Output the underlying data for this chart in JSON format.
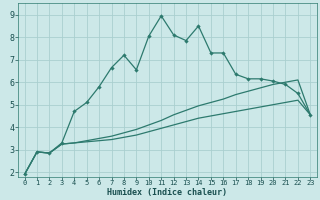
{
  "xlabel": "Humidex (Indice chaleur)",
  "xlim": [
    -0.5,
    23.5
  ],
  "ylim": [
    1.8,
    9.5
  ],
  "xticks": [
    0,
    1,
    2,
    3,
    4,
    5,
    6,
    7,
    8,
    9,
    10,
    11,
    12,
    13,
    14,
    15,
    16,
    17,
    18,
    19,
    20,
    21,
    22,
    23
  ],
  "yticks": [
    2,
    3,
    4,
    5,
    6,
    7,
    8,
    9
  ],
  "bg_color": "#cce8e8",
  "grid_color": "#aacfcf",
  "line_color": "#2d7a6e",
  "line1_x": [
    0,
    1,
    2,
    3,
    4,
    5,
    6,
    7,
    8,
    9,
    10,
    11,
    12,
    13,
    14,
    15,
    16,
    17,
    18,
    19,
    20,
    21,
    22,
    23
  ],
  "line1_y": [
    1.9,
    2.9,
    2.85,
    3.3,
    4.7,
    5.1,
    5.8,
    6.65,
    7.2,
    6.55,
    8.05,
    8.95,
    8.1,
    7.85,
    8.5,
    7.3,
    7.3,
    6.35,
    6.15,
    6.15,
    6.05,
    5.9,
    5.5,
    4.55
  ],
  "line2_x": [
    0,
    1,
    2,
    3,
    4,
    5,
    6,
    7,
    8,
    9,
    10,
    11,
    12,
    13,
    14,
    15,
    16,
    17,
    18,
    19,
    20,
    21,
    22,
    23
  ],
  "line2_y": [
    1.9,
    2.9,
    2.85,
    3.25,
    3.3,
    3.35,
    3.4,
    3.45,
    3.55,
    3.65,
    3.8,
    3.95,
    4.1,
    4.25,
    4.4,
    4.5,
    4.6,
    4.7,
    4.8,
    4.9,
    5.0,
    5.1,
    5.2,
    4.55
  ],
  "line3_x": [
    0,
    1,
    2,
    3,
    4,
    5,
    6,
    7,
    8,
    9,
    10,
    11,
    12,
    13,
    14,
    15,
    16,
    17,
    18,
    19,
    20,
    21,
    22,
    23
  ],
  "line3_y": [
    1.9,
    2.9,
    2.85,
    3.25,
    3.3,
    3.4,
    3.5,
    3.6,
    3.75,
    3.9,
    4.1,
    4.3,
    4.55,
    4.75,
    4.95,
    5.1,
    5.25,
    5.45,
    5.6,
    5.75,
    5.9,
    6.0,
    6.1,
    4.55
  ],
  "xlabel_fontsize": 6.0,
  "tick_fontsize_x": 5.0,
  "tick_fontsize_y": 6.0
}
